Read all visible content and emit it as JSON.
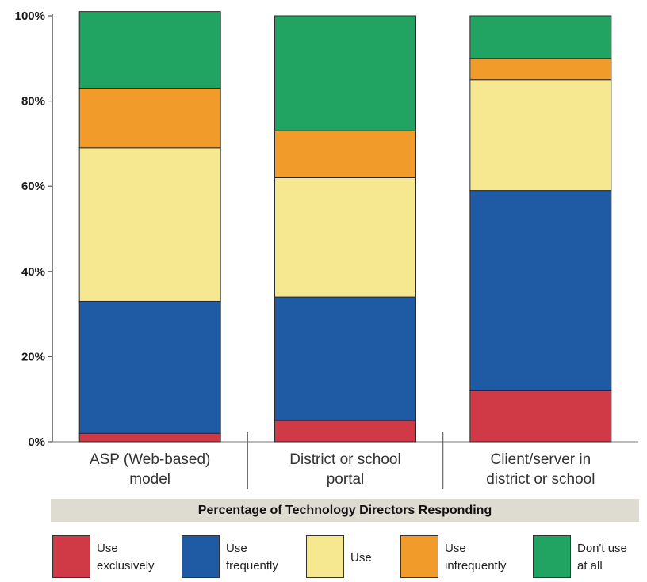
{
  "chart_data": {
    "type": "bar",
    "stacked": true,
    "categories": [
      [
        "ASP (Web-based)",
        "model"
      ],
      [
        "District or school",
        "portal"
      ],
      [
        "Client/server in",
        "district or school"
      ]
    ],
    "series": [
      {
        "name": "Use exclusively",
        "color": "#d03a46",
        "values": [
          2,
          5,
          12
        ]
      },
      {
        "name": "Use frequently",
        "color": "#1f5aa5",
        "values": [
          31,
          29,
          47
        ]
      },
      {
        "name": "Use",
        "color": "#f5e890",
        "values": [
          36,
          28,
          26
        ]
      },
      {
        "name": "Use infrequently",
        "color": "#f19b2b",
        "values": [
          14,
          11,
          5
        ]
      },
      {
        "name": "Don't use at all",
        "color": "#21a462",
        "values": [
          18,
          27,
          10
        ]
      }
    ],
    "yticks": [
      "0%",
      "20%",
      "40%",
      "60%",
      "80%",
      "100%"
    ],
    "ylim": [
      0,
      100
    ],
    "title": "Percentage of Technology Directors Responding",
    "grid": false,
    "legend_position": "bottom"
  },
  "legend": [
    {
      "line1": "Use",
      "line2": "exclusively",
      "color": "#d03a46"
    },
    {
      "line1": "Use",
      "line2": "frequently",
      "color": "#1f5aa5"
    },
    {
      "line1": "Use",
      "line2": "",
      "color": "#f5e890"
    },
    {
      "line1": "Use",
      "line2": "infrequently",
      "color": "#f19b2b"
    },
    {
      "line1": "Don't use",
      "line2": "at all",
      "color": "#21a462"
    }
  ]
}
